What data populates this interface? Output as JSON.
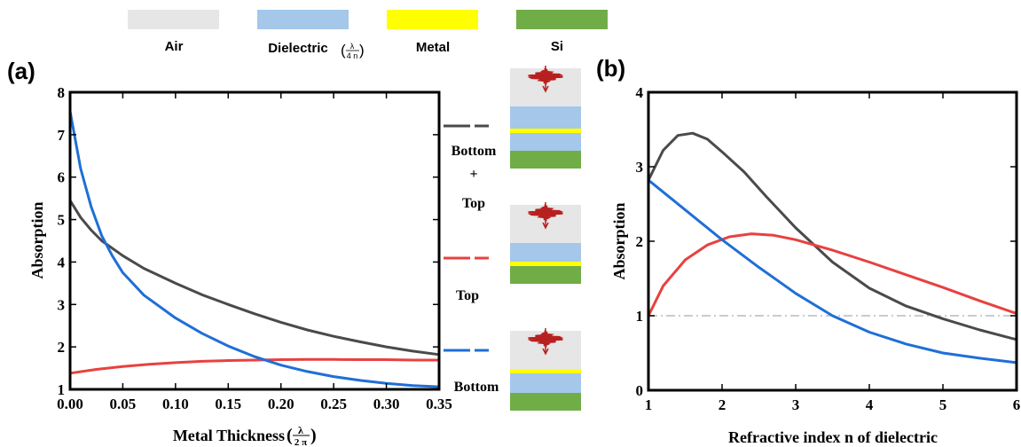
{
  "legend": {
    "items": [
      {
        "label": "Air",
        "color": "#e6e6e6"
      },
      {
        "label": "Dielectric",
        "color": "#a4c7ea"
      },
      {
        "label": "Metal",
        "color": "#ffff00"
      },
      {
        "label": "Si",
        "color": "#70ad47"
      }
    ],
    "dielectric_note_num": "λ",
    "dielectric_note_den": "4 n"
  },
  "panels": {
    "a_label": "(a)",
    "b_label": "(b)"
  },
  "stack_labels": {
    "bottom_top": "Bottom",
    "plus": "+",
    "top_word": "Top",
    "top": "Top",
    "bottom": "Bottom"
  },
  "chart_data": [
    {
      "type": "line",
      "panel": "(a)",
      "xlabel": "Metal Thickness",
      "xlabel_unit_num": "λ",
      "xlabel_unit_den": "2 π",
      "ylabel": "Absorption",
      "xlim": [
        0,
        0.35
      ],
      "ylim": [
        1,
        8
      ],
      "xticks": [
        "0.00",
        "0.05",
        "0.10",
        "0.15",
        "0.20",
        "0.25",
        "0.30",
        "0.35"
      ],
      "yticks": [
        "1",
        "2",
        "3",
        "4",
        "5",
        "6",
        "7",
        "8"
      ],
      "grid": false,
      "series": [
        {
          "name": "Bottom + Top",
          "color": "#4a4a4a",
          "x": [
            0,
            0.01,
            0.02,
            0.03,
            0.05,
            0.07,
            0.1,
            0.125,
            0.15,
            0.175,
            0.2,
            0.225,
            0.25,
            0.275,
            0.3,
            0.325,
            0.35
          ],
          "y": [
            5.45,
            5.05,
            4.75,
            4.5,
            4.15,
            3.85,
            3.5,
            3.23,
            3.0,
            2.78,
            2.58,
            2.4,
            2.25,
            2.12,
            2.0,
            1.9,
            1.82
          ]
        },
        {
          "name": "Top",
          "color": "#e8413f",
          "x": [
            0,
            0.025,
            0.05,
            0.075,
            0.1,
            0.125,
            0.15,
            0.175,
            0.2,
            0.225,
            0.25,
            0.275,
            0.3,
            0.325,
            0.35
          ],
          "y": [
            1.38,
            1.47,
            1.54,
            1.59,
            1.63,
            1.66,
            1.68,
            1.69,
            1.7,
            1.705,
            1.705,
            1.7,
            1.7,
            1.69,
            1.69
          ]
        },
        {
          "name": "Bottom",
          "color": "#1f6fd6",
          "x": [
            0,
            0.01,
            0.02,
            0.03,
            0.04,
            0.05,
            0.07,
            0.1,
            0.125,
            0.15,
            0.175,
            0.2,
            0.225,
            0.25,
            0.275,
            0.3,
            0.325,
            0.35
          ],
          "y": [
            7.55,
            6.2,
            5.3,
            4.62,
            4.15,
            3.75,
            3.22,
            2.68,
            2.32,
            2.02,
            1.77,
            1.57,
            1.42,
            1.3,
            1.21,
            1.14,
            1.09,
            1.06
          ]
        }
      ]
    },
    {
      "type": "line",
      "panel": "(b)",
      "xlabel": "Refractive index n of dielectric",
      "ylabel": "Absorption",
      "xlim": [
        1,
        6
      ],
      "ylim": [
        0,
        4
      ],
      "xticks": [
        "1",
        "2",
        "3",
        "4",
        "5",
        "6"
      ],
      "yticks": [
        "0",
        "1",
        "2",
        "3",
        "4"
      ],
      "grid": false,
      "reference_line": {
        "y": 1,
        "style": "dash-dot",
        "color": "#b8b8c8"
      },
      "series": [
        {
          "name": "Bottom + Top",
          "color": "#4a4a4a",
          "x": [
            1,
            1.2,
            1.4,
            1.6,
            1.8,
            2.0,
            2.3,
            2.6,
            3.0,
            3.5,
            4.0,
            4.5,
            5.0,
            5.5,
            6.0
          ],
          "y": [
            2.82,
            3.22,
            3.42,
            3.45,
            3.37,
            3.2,
            2.93,
            2.6,
            2.18,
            1.72,
            1.37,
            1.13,
            0.96,
            0.81,
            0.68
          ]
        },
        {
          "name": "Top",
          "color": "#e8413f",
          "x": [
            1,
            1.2,
            1.5,
            1.8,
            2.1,
            2.4,
            2.7,
            3.0,
            3.5,
            4.0,
            4.5,
            5.0,
            5.5,
            6.0
          ],
          "y": [
            1.0,
            1.4,
            1.75,
            1.95,
            2.06,
            2.1,
            2.08,
            2.02,
            1.88,
            1.72,
            1.55,
            1.38,
            1.2,
            1.03
          ]
        },
        {
          "name": "Bottom",
          "color": "#1f6fd6",
          "x": [
            1,
            1.25,
            1.5,
            2.0,
            2.5,
            3.0,
            3.5,
            4.0,
            4.5,
            5.0,
            5.5,
            6.0
          ],
          "y": [
            2.82,
            2.62,
            2.42,
            2.02,
            1.65,
            1.3,
            1.0,
            0.78,
            0.62,
            0.5,
            0.43,
            0.37
          ]
        }
      ]
    }
  ]
}
